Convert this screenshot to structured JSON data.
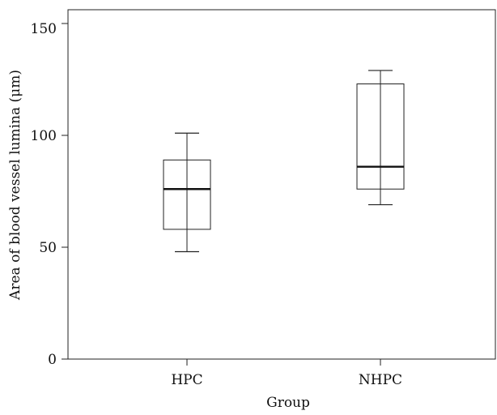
{
  "chart_data": {
    "type": "box",
    "title": "",
    "xlabel": "Group",
    "ylabel": "Area of blood vessel lumina (μm)",
    "ylim": [
      0,
      155
    ],
    "yticks": [
      "0",
      "50",
      "100",
      "150"
    ],
    "categories": [
      "HPC",
      "NHPC"
    ],
    "boxes": [
      {
        "category": "HPC",
        "min": 48,
        "q1": 58,
        "median": 76,
        "q3": 89,
        "max": 101
      },
      {
        "category": "NHPC",
        "min": 69,
        "q1": 76,
        "median": 86,
        "q3": 123,
        "max": 129
      }
    ],
    "grid": false,
    "legend": "none"
  }
}
